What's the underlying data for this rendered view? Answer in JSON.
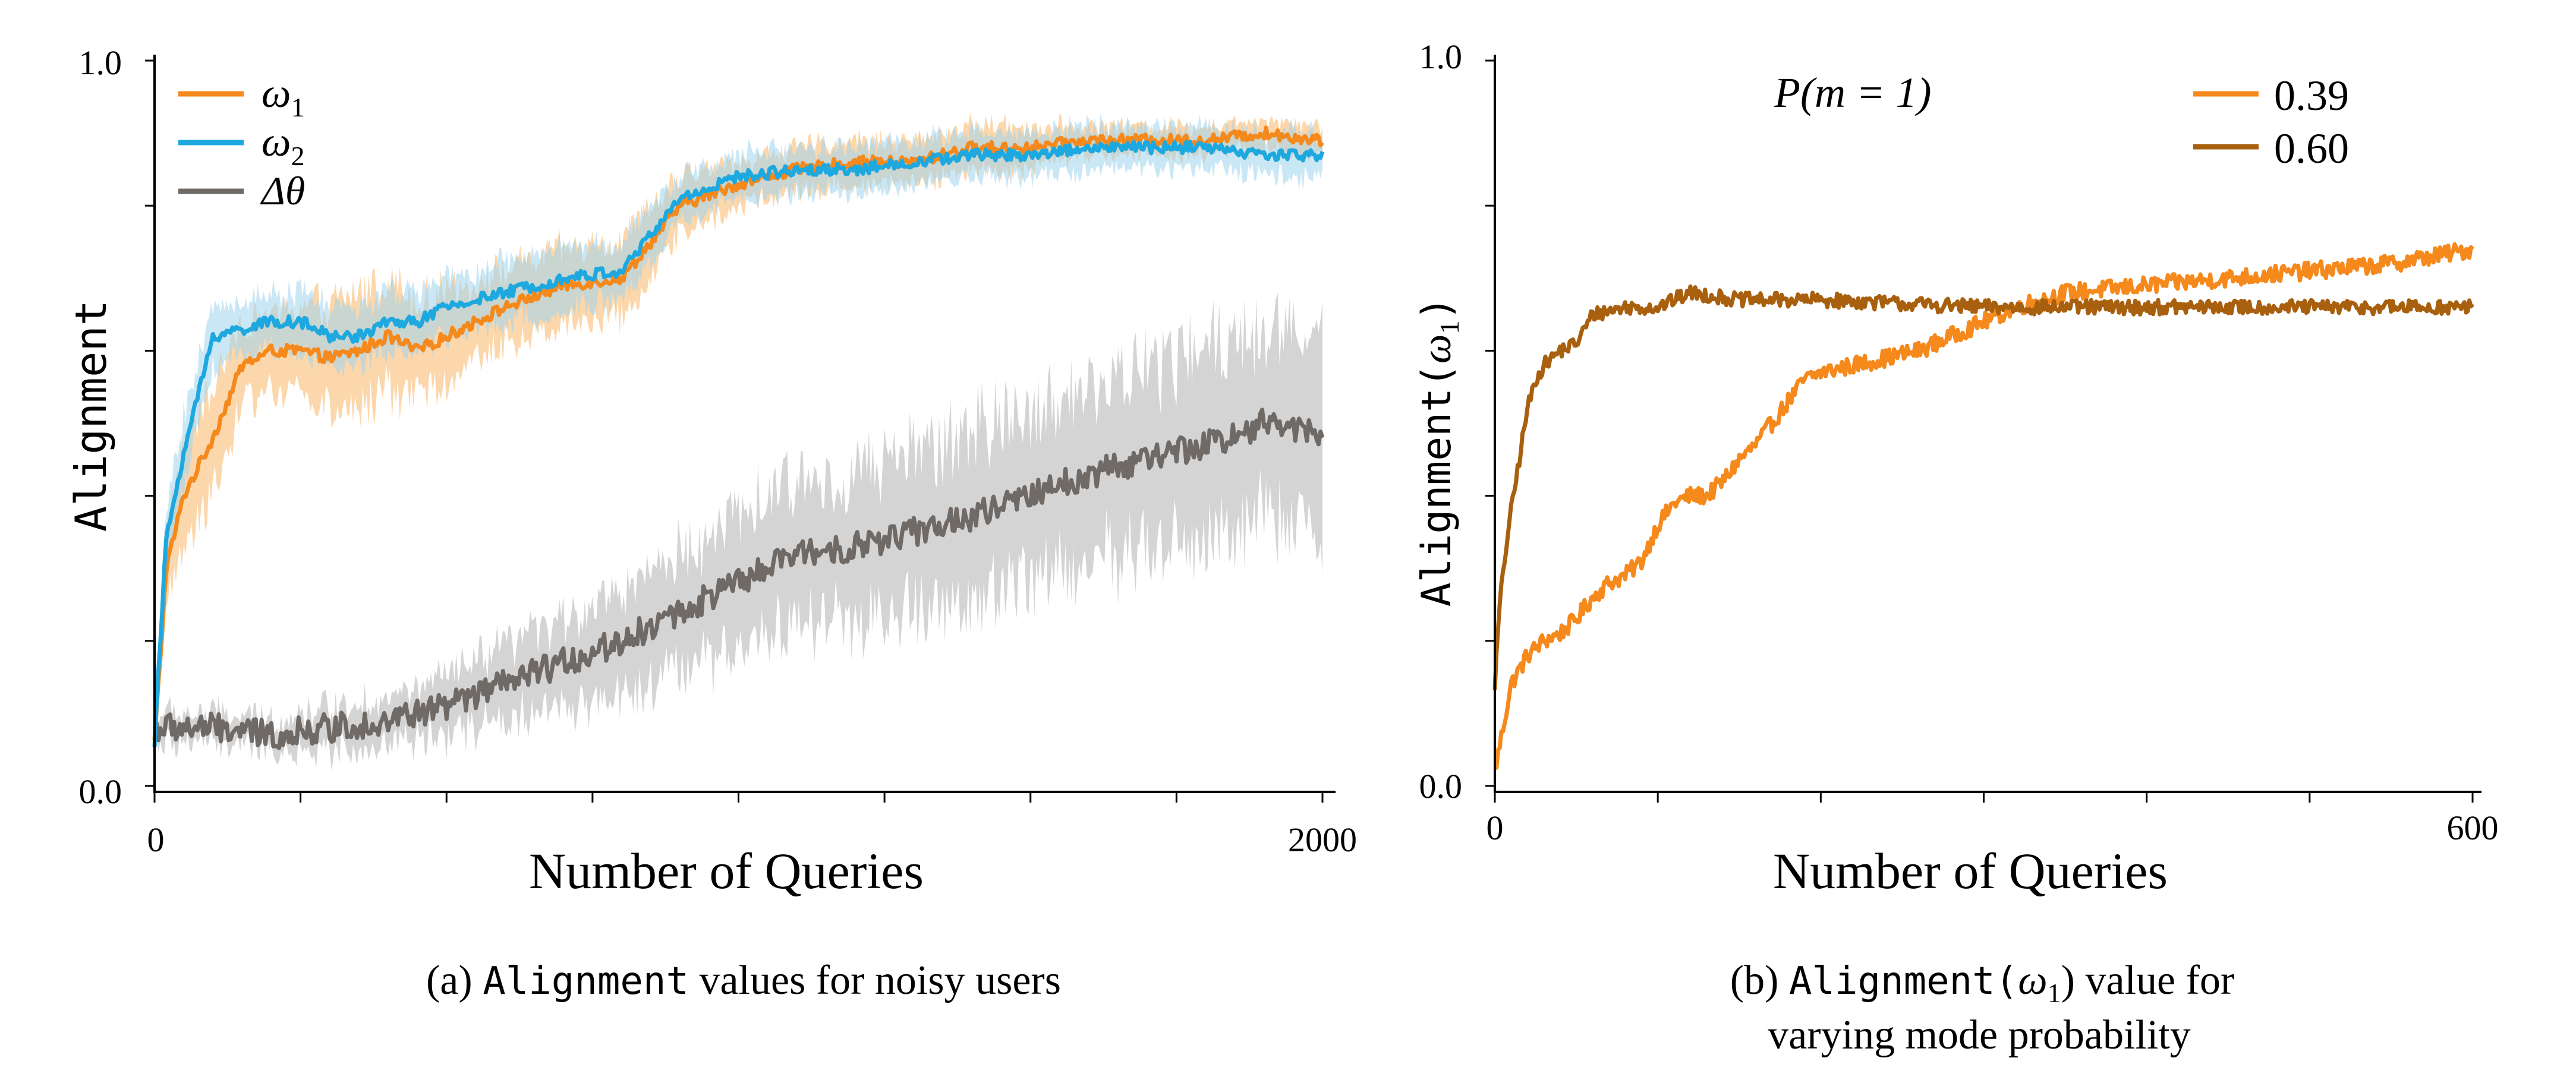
{
  "colors": {
    "orange": "#f5891c",
    "blue": "#1ea8e0",
    "gray": "#6f6a66",
    "brown": "#a8600e",
    "orange_band": "#fbc98f",
    "blue_band": "#9fd4ee",
    "gray_band": "#c9c9c9",
    "axis": "#000000"
  },
  "chart_data": [
    {
      "id": "a",
      "type": "line",
      "caption_prefix": "(a) ",
      "caption_code": "Alignment",
      "caption_rest": " values for noisy users",
      "xlabel": "Number of Queries",
      "ylabel": "Alignment",
      "xlim": [
        0,
        2000
      ],
      "ylim": [
        0.0,
        1.0
      ],
      "x_tick_labels": [
        {
          "value": 0,
          "label": "0"
        },
        {
          "value": 2000,
          "label": "2000"
        }
      ],
      "x_minor_ticks": [
        250,
        500,
        750,
        1000,
        1250,
        1500,
        1750
      ],
      "y_tick_labels": [
        {
          "value": 0.0,
          "label": "0.0"
        },
        {
          "value": 1.0,
          "label": "1.0"
        }
      ],
      "y_minor_ticks": [
        0.2,
        0.4,
        0.6,
        0.8
      ],
      "legend": [
        {
          "key": "omega1",
          "sym": "ω",
          "sub": "1"
        },
        {
          "key": "omega2",
          "sym": "ω",
          "sub": "2"
        },
        {
          "key": "dtheta",
          "sym": "Δθ",
          "sub": ""
        }
      ],
      "series": [
        {
          "key": "omega1",
          "name": "ω1",
          "color_key": "orange",
          "band_key": "orange_band",
          "x": [
            0,
            20,
            50,
            100,
            150,
            200,
            250,
            300,
            350,
            400,
            450,
            500,
            600,
            700,
            800,
            900,
            1000,
            1100,
            1200,
            1300,
            1400,
            1500,
            1600,
            1700,
            1800,
            1900,
            2000
          ],
          "y": [
            0.06,
            0.3,
            0.4,
            0.48,
            0.58,
            0.6,
            0.6,
            0.59,
            0.6,
            0.62,
            0.6,
            0.62,
            0.66,
            0.69,
            0.7,
            0.8,
            0.83,
            0.85,
            0.86,
            0.86,
            0.88,
            0.88,
            0.89,
            0.89,
            0.89,
            0.9,
            0.89
          ],
          "band": [
            0.03,
            0.05,
            0.07,
            0.07,
            0.06,
            0.05,
            0.06,
            0.07,
            0.08,
            0.08,
            0.07,
            0.06,
            0.05,
            0.05,
            0.05,
            0.04,
            0.03,
            0.03,
            0.03,
            0.03,
            0.03,
            0.03,
            0.02,
            0.02,
            0.02,
            0.02,
            0.02
          ],
          "noise": 0.008
        },
        {
          "key": "omega2",
          "name": "ω2",
          "color_key": "blue",
          "band_key": "blue_band",
          "x": [
            0,
            20,
            50,
            100,
            150,
            200,
            250,
            300,
            350,
            400,
            450,
            500,
            600,
            700,
            800,
            900,
            1000,
            1100,
            1200,
            1300,
            1400,
            1500,
            1600,
            1700,
            1800,
            1900,
            2000
          ],
          "y": [
            0.06,
            0.34,
            0.46,
            0.62,
            0.63,
            0.64,
            0.64,
            0.62,
            0.62,
            0.64,
            0.64,
            0.66,
            0.68,
            0.7,
            0.71,
            0.81,
            0.84,
            0.85,
            0.85,
            0.86,
            0.87,
            0.87,
            0.88,
            0.88,
            0.88,
            0.87,
            0.87
          ],
          "band": [
            0.03,
            0.04,
            0.05,
            0.04,
            0.04,
            0.04,
            0.04,
            0.04,
            0.04,
            0.04,
            0.04,
            0.04,
            0.04,
            0.04,
            0.04,
            0.03,
            0.03,
            0.03,
            0.03,
            0.03,
            0.03,
            0.03,
            0.03,
            0.03,
            0.03,
            0.03,
            0.03
          ],
          "noise": 0.008
        },
        {
          "key": "dtheta",
          "name": "Δθ",
          "color_key": "gray",
          "band_key": "gray_band",
          "x": [
            0,
            100,
            200,
            300,
            400,
            500,
            600,
            700,
            800,
            900,
            1000,
            1100,
            1200,
            1300,
            1400,
            1500,
            1600,
            1700,
            1800,
            1900,
            2000
          ],
          "y": [
            0.08,
            0.08,
            0.07,
            0.08,
            0.09,
            0.11,
            0.14,
            0.17,
            0.2,
            0.24,
            0.28,
            0.32,
            0.33,
            0.35,
            0.37,
            0.4,
            0.43,
            0.45,
            0.47,
            0.5,
            0.49
          ],
          "band": [
            0.02,
            0.02,
            0.02,
            0.03,
            0.03,
            0.04,
            0.05,
            0.06,
            0.07,
            0.08,
            0.09,
            0.1,
            0.1,
            0.11,
            0.12,
            0.12,
            0.12,
            0.13,
            0.13,
            0.13,
            0.13
          ],
          "noise": 0.02
        }
      ]
    },
    {
      "id": "b",
      "type": "line",
      "caption_prefix": "(b) ",
      "caption_code": "Alignment(",
      "caption_omega": "ω",
      "caption_sub": "1",
      "caption_rest": ") value for",
      "caption_line2": "varying mode probability",
      "xlabel": "Number of Queries",
      "ylabel_code": "Alignment(",
      "ylabel_omega": "ω",
      "ylabel_sub": "1",
      "ylabel_close": ")",
      "xlim": [
        0,
        600
      ],
      "ylim": [
        0.0,
        1.0
      ],
      "x_tick_labels": [
        {
          "value": 0,
          "label": "0"
        },
        {
          "value": 600,
          "label": "600"
        }
      ],
      "x_minor_ticks": [
        100,
        200,
        300,
        400,
        500
      ],
      "y_tick_labels": [
        {
          "value": 0.0,
          "label": "0.0"
        },
        {
          "value": 1.0,
          "label": "1.0"
        }
      ],
      "y_minor_ticks": [
        0.2,
        0.4,
        0.6,
        0.8
      ],
      "legend_title": "P(m = 1)",
      "legend": [
        {
          "key": "p039",
          "label": "0.39"
        },
        {
          "key": "p060",
          "label": "0.60"
        }
      ],
      "series": [
        {
          "key": "p039",
          "name": "0.39",
          "color_key": "orange",
          "x": [
            0,
            5,
            10,
            20,
            30,
            40,
            50,
            60,
            70,
            80,
            90,
            100,
            110,
            120,
            130,
            140,
            150,
            160,
            170,
            180,
            190,
            200,
            220,
            240,
            260,
            280,
            300,
            320,
            350,
            400,
            450,
            500,
            550,
            600
          ],
          "y": [
            0.02,
            0.08,
            0.14,
            0.18,
            0.2,
            0.21,
            0.23,
            0.26,
            0.28,
            0.29,
            0.31,
            0.36,
            0.39,
            0.4,
            0.4,
            0.42,
            0.45,
            0.47,
            0.5,
            0.53,
            0.56,
            0.57,
            0.58,
            0.59,
            0.6,
            0.62,
            0.64,
            0.66,
            0.68,
            0.69,
            0.7,
            0.71,
            0.72,
            0.74
          ],
          "noise": 0.012
        },
        {
          "key": "p060",
          "name": "0.60",
          "color_key": "brown",
          "x": [
            0,
            3,
            8,
            15,
            20,
            25,
            30,
            40,
            50,
            60,
            80,
            100,
            120,
            150,
            200,
            300,
            400,
            500,
            600
          ],
          "y": [
            0.14,
            0.25,
            0.35,
            0.45,
            0.52,
            0.56,
            0.58,
            0.6,
            0.61,
            0.65,
            0.66,
            0.66,
            0.68,
            0.67,
            0.67,
            0.66,
            0.66,
            0.66,
            0.66
          ],
          "noise": 0.01
        }
      ]
    }
  ]
}
